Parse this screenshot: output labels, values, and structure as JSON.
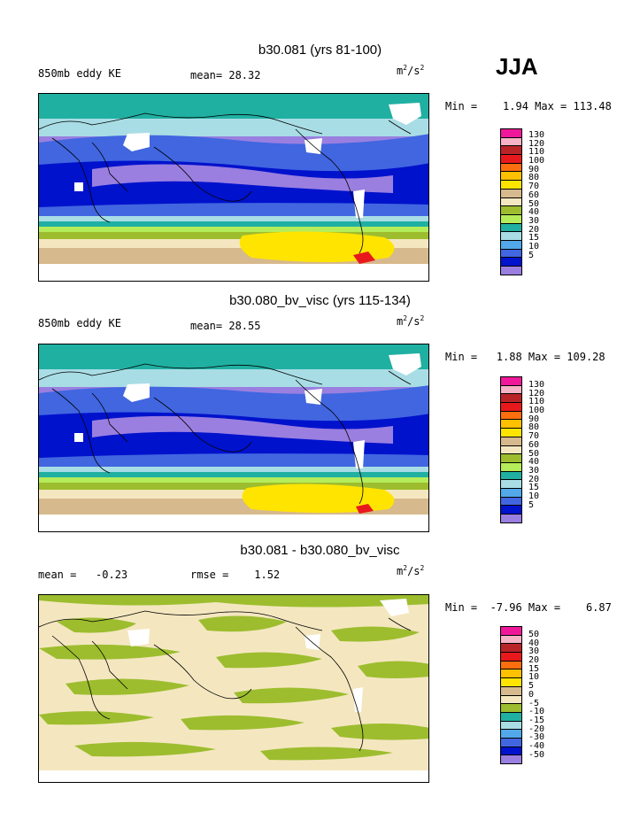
{
  "season": "JJA",
  "panels": [
    {
      "title": "b30.081 (yrs 81-100)",
      "left_label": "850mb eddy KE",
      "center_label": "mean=  28.32",
      "right_label": "m",
      "minmax": "Min =    1.94 Max = 113.48",
      "legend_labels": [
        "130",
        "120",
        "110",
        "100",
        "90",
        "80",
        "70",
        "60",
        "50",
        "40",
        "30",
        "20",
        "15",
        "10",
        "5"
      ],
      "legend_colors": [
        "#f0189a",
        "#f6b3c5",
        "#b82428",
        "#e8191c",
        "#fd6e0e",
        "#ffc000",
        "#ffe400",
        "#d6b98d",
        "#f4e7c0",
        "#9dbd2e",
        "#b5ec5a",
        "#20b0a2",
        "#a9dde5",
        "#52a8e8",
        "#4166e0",
        "#0012cc",
        "#9a7fe0"
      ]
    },
    {
      "title": "b30.080_bv_visc (yrs 115-134)",
      "left_label": "850mb eddy KE",
      "center_label": "mean=  28.55",
      "right_label": "m",
      "minmax": "Min =   1.88 Max = 109.28",
      "legend_labels": [
        "130",
        "120",
        "110",
        "100",
        "90",
        "80",
        "70",
        "60",
        "50",
        "40",
        "30",
        "20",
        "15",
        "10",
        "5"
      ],
      "legend_colors": [
        "#f0189a",
        "#f6b3c5",
        "#b82428",
        "#e8191c",
        "#fd6e0e",
        "#ffc000",
        "#ffe400",
        "#d6b98d",
        "#f4e7c0",
        "#9dbd2e",
        "#b5ec5a",
        "#20b0a2",
        "#a9dde5",
        "#52a8e8",
        "#4166e0",
        "#0012cc",
        "#9a7fe0"
      ]
    },
    {
      "title": "b30.081 - b30.080_bv_visc",
      "left_label": "mean =   -0.23",
      "center_label": "rmse =    1.52",
      "right_label": "m",
      "minmax": "Min =  -7.96 Max =    6.87",
      "legend_labels": [
        "50",
        "40",
        "30",
        "20",
        "15",
        "10",
        "5",
        "0",
        "-5",
        "-10",
        "-15",
        "-20",
        "-30",
        "-40",
        "-50"
      ],
      "legend_colors": [
        "#f0189a",
        "#f6b3c5",
        "#b82428",
        "#e8191c",
        "#fd6e0e",
        "#ffc000",
        "#ffe400",
        "#d6b98d",
        "#f4e7c0",
        "#9dbd2e",
        "#20b0a2",
        "#a9dde5",
        "#52a8e8",
        "#4166e0",
        "#0012cc",
        "#9a7fe0"
      ]
    }
  ],
  "units_sup": "2",
  "units_tail": "/s"
}
